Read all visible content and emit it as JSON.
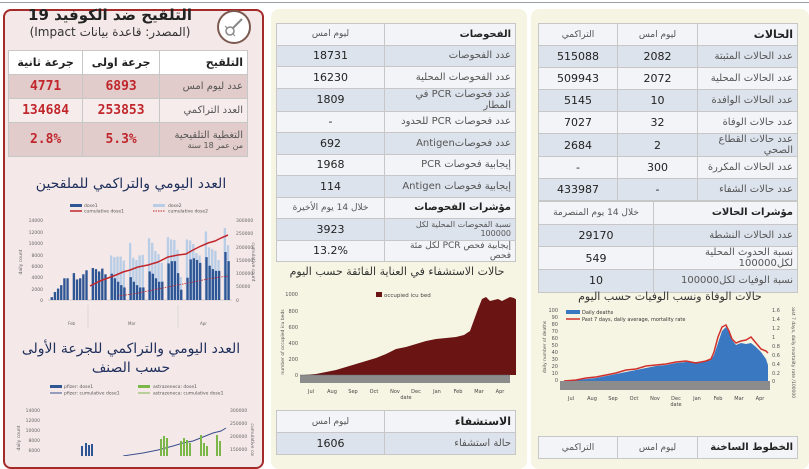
{
  "vaccination": {
    "title": "التلقيح ضد الكوفيد 19",
    "source": "(المصدر: قاعدة بيانات Impact)",
    "logo_icon": "virus-syringe-icon",
    "headers": [
      "التلقيح",
      "جرعة اولى",
      "جرعة ثانية"
    ],
    "rows": [
      {
        "label": "عدد ليوم امس",
        "dose1": "6893",
        "dose2": "4771"
      },
      {
        "label": "العدد التراكمي",
        "dose1": "253853",
        "dose2": "134684"
      },
      {
        "label": "التغطية التلقيحية",
        "sublabel": "من عمر 18 سنة",
        "dose1": "5.3%",
        "dose2": "2.8%"
      }
    ],
    "chart1_title": "العدد اليومي والتراكمي للملقحين",
    "chart2_title_line1": "العدد اليومي والتراكمي للجرعة الأولى",
    "chart2_title_line2": "حسب الصنف",
    "accent_color": "#c0272d"
  },
  "tests": {
    "headers": [
      "الفحوصات",
      "ليوم امس"
    ],
    "rows": [
      {
        "label": "عدد الفحوصات",
        "value": "18731"
      },
      {
        "label": "عدد الفحوصات المحلية",
        "value": "16230"
      },
      {
        "label": "عدد فحوصات PCR في المطار",
        "value": "1809"
      },
      {
        "label": "عدد فحوصات PCR للحدود",
        "value": "-"
      },
      {
        "label": "عدد فحوصاتAntigen",
        "value": "692"
      },
      {
        "label": "إيجابية فحوصات PCR",
        "value": "1968"
      },
      {
        "label": "إيجابية فحوصات Antigen",
        "value": "114"
      }
    ],
    "indicators_header": "مؤشرات الفحوصات",
    "indicators_period": "خلال 14 يوم الأخيرة",
    "indicators": [
      {
        "label": "نسبة الفحوصات المحلية لكل 100000",
        "value": "3923"
      },
      {
        "label": "إيجابية فحص PCR لكل مئة فحص",
        "value": "13.2%"
      }
    ]
  },
  "icu_chart_title": "حالات الاستشفاء في العناية الفائقة حسب اليوم",
  "hospital": {
    "headers": [
      "الاستشفاء",
      "ليوم امس"
    ],
    "rows": [
      {
        "label": "حالة استشفاء",
        "value": "1606"
      }
    ]
  },
  "cases": {
    "headers": [
      "الحالات",
      "ليوم امس",
      "التراكمي"
    ],
    "rows": [
      {
        "label": "عدد الحالات المثبتة",
        "yesterday": "2082",
        "cumulative": "515088"
      },
      {
        "label": "عدد الحالات المحلية",
        "yesterday": "2072",
        "cumulative": "509943"
      },
      {
        "label": "عدد الحالات الوافدة",
        "yesterday": "10",
        "cumulative": "5145"
      },
      {
        "label": "عدد حالات الوفاة",
        "yesterday": "32",
        "cumulative": "7027"
      },
      {
        "label": "عدد حالات القطاع الصحي",
        "yesterday": "2",
        "cumulative": "2684"
      },
      {
        "label": "عدد الحالات المكررة",
        "yesterday": "300",
        "cumulative": "-"
      },
      {
        "label": "عدد حالات الشفاء",
        "yesterday": "-",
        "cumulative": "433987"
      }
    ],
    "indicators_header": "مؤشرات الحالات",
    "indicators_period": "خلال 14 يوم المنصرمة",
    "indicators": [
      {
        "label": "عدد الحالات النشطة",
        "value": "29170"
      },
      {
        "label": "نسبة الحدوث المحلية لكل100000",
        "value": "549"
      },
      {
        "label": "نسبة الوفيات لكل100000",
        "value": "10"
      }
    ]
  },
  "deaths_chart_title": "حالات الوفاة ونسب الوفيات حسب اليوم",
  "hotlines": {
    "headers": [
      "الخطوط الساخنة",
      "ليوم امس",
      "التراكمي"
    ]
  },
  "chart_data": [
    {
      "type": "bar",
      "title": "العدد اليومي والتراكمي للملقحين",
      "xlabel": "",
      "ylabel": "daily count",
      "y2label": "cumulative count",
      "ylim": [
        0,
        14000
      ],
      "y2lim": [
        0,
        300000
      ],
      "yticks": [
        0,
        2000,
        4000,
        6000,
        8000,
        10000,
        12000,
        14000
      ],
      "y2ticks": [
        0,
        50000,
        100000,
        150000,
        200000,
        250000,
        300000
      ],
      "month_labels": [
        "Feb",
        "Mar",
        "Apr"
      ],
      "legend": [
        "dose1",
        "dose2",
        "cumulative dose1",
        "cumulative dose2"
      ],
      "series": [
        {
          "name": "dose1",
          "type": "bar",
          "color": "#2e5594",
          "values": [
            500,
            1400,
            2000,
            2600,
            3800,
            3800,
            0,
            4700,
            3600,
            3800,
            4500,
            5200,
            0,
            5600,
            5400,
            5000,
            5500,
            4500,
            0,
            4600,
            3800,
            3200,
            2600,
            2200,
            0,
            4000,
            3200,
            2600,
            2200,
            2200,
            0,
            5000,
            4600,
            3800,
            3200,
            3200,
            0,
            6400,
            6800,
            6800,
            4700,
            1800,
            0,
            3900,
            7100,
            7300,
            7000,
            6500,
            0,
            7500,
            6000,
            5400,
            5100,
            5100,
            0,
            8400,
            6800
          ]
        },
        {
          "name": "dose2",
          "type": "bar",
          "color": "#b9cde6",
          "values": [
            0,
            0,
            0,
            0,
            0,
            0,
            0,
            0,
            0,
            0,
            0,
            0,
            0,
            0,
            0,
            0,
            0,
            0,
            0,
            7800,
            7500,
            7600,
            7600,
            6900,
            0,
            10000,
            7400,
            7000,
            7800,
            7900,
            0,
            10800,
            10000,
            8600,
            8000,
            6500,
            0,
            11000,
            10600,
            10500,
            8800,
            4000,
            0,
            10600,
            10400,
            9800,
            8200,
            7800,
            0,
            12000,
            9200,
            8900,
            8600,
            7000,
            0,
            12600,
            9600
          ]
        },
        {
          "name": "cumulative dose1",
          "type": "line",
          "axis": "y2",
          "color": "#c0272d",
          "values": [
            50000,
            62000,
            75000,
            80000,
            90000,
            95000,
            105000,
            110000,
            120000,
            130000,
            150000,
            160000,
            162000,
            175000,
            195000,
            200000,
            215000,
            225000,
            238000,
            240000,
            254000
          ]
        },
        {
          "name": "cumulative dose2",
          "type": "line",
          "axis": "y2",
          "color": "#c0272d",
          "dashed": true,
          "values": [
            5000,
            15000,
            25000,
            35000,
            45000,
            55000,
            65000,
            75000,
            85000,
            95000,
            105000,
            115000,
            125000,
            130000,
            135000
          ]
        }
      ]
    },
    {
      "type": "bar",
      "title": "العدد اليومي والتراكمي للجرعة الأولى حسب الصنف",
      "ylabel": "daily count",
      "y2label": "cumulative count",
      "ylim": [
        0,
        14000
      ],
      "y2lim": [
        0,
        300000
      ],
      "yticks": [
        6000,
        8000,
        10000,
        12000,
        14000
      ],
      "y2ticks": [
        100000,
        150000,
        200000,
        250000,
        300000
      ],
      "legend": [
        "pfizer: dose1",
        "astrazeneca: dose1",
        "pfizer: cumulative dose1",
        "astrazeneca: cumulative dose1"
      ],
      "series": [
        {
          "name": "pfizer: dose1",
          "type": "bar",
          "color": "#2e5594"
        },
        {
          "name": "astrazeneca: dose1",
          "type": "bar",
          "color": "#7ab648"
        },
        {
          "name": "pfizer: cumulative dose1",
          "type": "line",
          "color": "#3a4e8c",
          "values": [
            100000,
            120000,
            140000,
            160000,
            180000,
            200000,
            215000
          ]
        },
        {
          "name": "astrazeneca: cumulative dose1",
          "type": "line",
          "color": "#7ab648"
        }
      ]
    },
    {
      "type": "area",
      "title": "حالات الاستشفاء في العناية الفائقة حسب اليوم",
      "xlabel": "date",
      "ylabel": "number of occupied icu beds",
      "ylim": [
        0,
        1000
      ],
      "yticks": [
        0,
        200,
        400,
        600,
        800,
        1000
      ],
      "categories": [
        "Jul",
        "Aug",
        "Sep",
        "Oct",
        "Nov",
        "Dec",
        "Jan",
        "Feb",
        "Mar",
        "Apr"
      ],
      "legend": [
        "occupied icu bed"
      ],
      "series": [
        {
          "name": "occupied icu bed",
          "color": "#6b1414",
          "values": [
            10,
            25,
            45,
            60,
            85,
            110,
            130,
            150,
            180,
            210,
            240,
            270,
            300,
            330,
            360,
            380,
            400,
            410,
            420,
            460,
            800,
            950,
            920,
            930,
            900,
            940,
            960,
            980,
            930,
            860,
            800,
            720
          ]
        }
      ]
    },
    {
      "type": "bar",
      "title": "حالات الوفاة ونسب الوفيات حسب اليوم",
      "xlabel": "date",
      "ylabel": "daily number of deaths",
      "y2label": "past 7 days, daily mortality rate /100000",
      "ylim": [
        0,
        100
      ],
      "y2lim": [
        0,
        1.6
      ],
      "yticks": [
        0,
        10,
        20,
        30,
        40,
        50,
        60,
        70,
        80,
        90,
        100
      ],
      "y2ticks": [
        0,
        0.2,
        0.4,
        0.6,
        0.8,
        1,
        1.2,
        1.4,
        1.6
      ],
      "categories": [
        "Jul",
        "Aug",
        "Sep",
        "Oct",
        "Nov",
        "Dec",
        "Jan",
        "Feb",
        "Mar",
        "Apr"
      ],
      "legend": [
        "Daily deaths",
        "Past 7 days, daily average, mortality rate"
      ],
      "series": [
        {
          "name": "Daily deaths",
          "type": "bar",
          "color": "#3a78c2",
          "values": [
            1,
            2,
            3,
            4,
            5,
            7,
            9,
            11,
            14,
            12,
            16,
            20,
            18,
            22,
            24,
            26,
            25,
            24,
            28,
            27,
            24,
            25,
            30,
            26,
            60,
            68,
            85,
            90,
            70,
            55,
            55,
            57,
            55,
            62,
            60,
            55,
            45,
            42,
            38
          ]
        },
        {
          "name": "Past 7 days, daily average, mortality rate",
          "type": "line",
          "axis": "y2",
          "color": "#d0312d",
          "values": [
            0.02,
            0.03,
            0.05,
            0.07,
            0.08,
            0.1,
            0.13,
            0.16,
            0.2,
            0.2,
            0.25,
            0.3,
            0.32,
            0.35,
            0.35,
            0.38,
            0.36,
            0.35,
            0.42,
            0.38,
            0.32,
            0.45,
            1.0,
            1.2,
            1.42,
            1.1,
            0.9,
            0.95,
            0.98,
            0.85,
            1.05,
            0.95,
            0.8,
            0.7,
            0.68
          ]
        }
      ]
    }
  ]
}
